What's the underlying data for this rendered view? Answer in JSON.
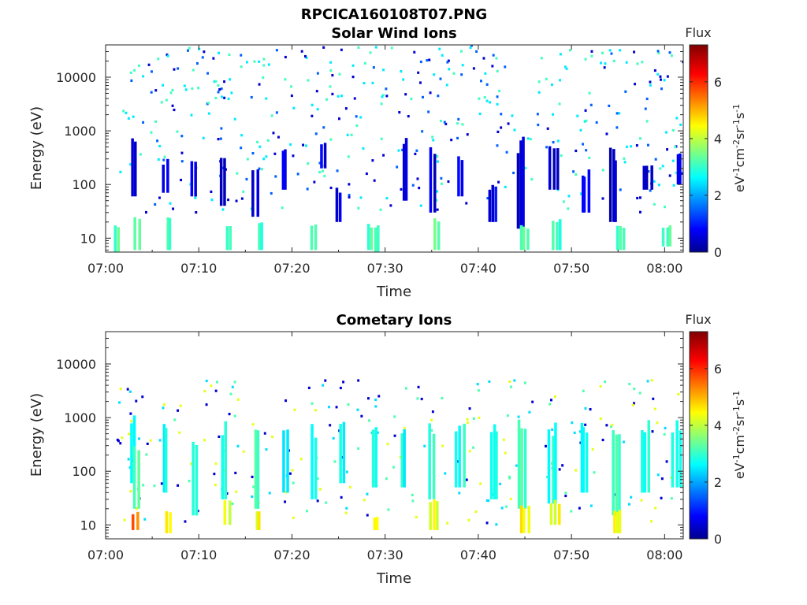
{
  "figure_title": "RPCICA160108T07.PNG",
  "colorbar": {
    "title": "Flux",
    "label_main": "eV",
    "label_sup1": "-1",
    "label_cm": "cm",
    "label_sup2": "-2",
    "label_sr": "sr",
    "label_sup3": "-1",
    "label_s": "s",
    "label_sup4": "-1",
    "range": [
      0,
      7.3
    ],
    "ticks": [
      "0",
      "2",
      "4",
      "6"
    ],
    "colormap": "jet"
  },
  "chart_data": [
    {
      "type": "heatmap",
      "title": "Solar Wind Ions",
      "xlabel": "Time",
      "ylabel": "Energy (eV)",
      "x_range_minutes_after_0700": [
        0,
        62
      ],
      "y_scale": "log",
      "y_range_eV": [
        5.5,
        40000
      ],
      "x_ticks": [
        "07:00",
        "07:10",
        "07:20",
        "07:30",
        "07:40",
        "07:50",
        "08:00"
      ],
      "y_ticks": [
        "10",
        "100",
        "1000",
        "10000"
      ],
      "color_quantity": "Flux",
      "streaks": [
        [
          1.2,
          5.5,
          18,
          3.3
        ],
        [
          3.1,
          60,
          900,
          0.7
        ],
        [
          3.4,
          6,
          30,
          3.4
        ],
        [
          6.5,
          70,
          300,
          0.6
        ],
        [
          6.8,
          6,
          25,
          3.2
        ],
        [
          9.4,
          60,
          300,
          0.6
        ],
        [
          12.6,
          40,
          400,
          0.7
        ],
        [
          13.3,
          6,
          20,
          3.3
        ],
        [
          16.1,
          25,
          300,
          0.6
        ],
        [
          16.6,
          6,
          20,
          3.2
        ],
        [
          19.2,
          80,
          500,
          0.8
        ],
        [
          22.3,
          6,
          20,
          3.1
        ],
        [
          23.4,
          200,
          700,
          0.7
        ],
        [
          25.1,
          20,
          90,
          0.8
        ],
        [
          28.3,
          6,
          20,
          3.2
        ],
        [
          29.1,
          5.5,
          18,
          3.3
        ],
        [
          32.2,
          50,
          900,
          0.6
        ],
        [
          35.1,
          30,
          500,
          0.7
        ],
        [
          35.6,
          6,
          25,
          3.4
        ],
        [
          38.2,
          60,
          400,
          0.7
        ],
        [
          41.5,
          20,
          100,
          0.8
        ],
        [
          44.6,
          15,
          800,
          0.6
        ],
        [
          45.0,
          6,
          18,
          3.3
        ],
        [
          48.1,
          80,
          600,
          0.6
        ],
        [
          48.5,
          6,
          25,
          3.2
        ],
        [
          51.5,
          30,
          200,
          0.7
        ],
        [
          54.5,
          20,
          500,
          0.6
        ],
        [
          55.3,
          6,
          18,
          3.3
        ],
        [
          58.2,
          80,
          250,
          0.7
        ],
        [
          60.3,
          7,
          18,
          3.2
        ],
        [
          61.7,
          100,
          500,
          0.7
        ]
      ],
      "scattered_pixels": {
        "count": 430,
        "x_range": [
          1,
          62
        ],
        "log_energy_range": [
          1.45,
          4.6
        ],
        "flux_levels": [
          0.6,
          1.6,
          2.6,
          3.2
        ]
      }
    },
    {
      "type": "heatmap",
      "title": "Cometary Ions",
      "xlabel": "Time",
      "ylabel": "Energy (eV)",
      "x_range_minutes_after_0700": [
        0,
        62
      ],
      "y_scale": "log",
      "y_range_eV": [
        5.5,
        40000
      ],
      "x_ticks": [
        "07:00",
        "07:10",
        "07:20",
        "07:30",
        "07:40",
        "07:50",
        "08:00"
      ],
      "y_ticks": [
        "10",
        "100",
        "1000",
        "10000"
      ],
      "color_quantity": "Flux",
      "streaks": [
        [
          3.0,
          60,
          1100,
          2.6
        ],
        [
          3.2,
          8,
          18,
          5.6
        ],
        [
          3.4,
          20,
          300,
          3.5
        ],
        [
          6.4,
          40,
          900,
          2.8
        ],
        [
          6.7,
          7,
          20,
          4.8
        ],
        [
          9.6,
          15,
          600,
          3.0
        ],
        [
          12.8,
          30,
          900,
          2.8
        ],
        [
          13.1,
          10,
          30,
          4.3
        ],
        [
          16.2,
          20,
          800,
          3.1
        ],
        [
          16.4,
          8,
          20,
          4.5
        ],
        [
          19.3,
          40,
          1000,
          2.7
        ],
        [
          22.4,
          30,
          800,
          2.8
        ],
        [
          25.5,
          60,
          900,
          2.9
        ],
        [
          28.8,
          50,
          800,
          2.9
        ],
        [
          29.0,
          8,
          15,
          4.4
        ],
        [
          32.0,
          50,
          900,
          2.8
        ],
        [
          35.0,
          30,
          900,
          3.2
        ],
        [
          35.3,
          8,
          30,
          4.4
        ],
        [
          38.1,
          50,
          800,
          2.9
        ],
        [
          41.7,
          30,
          1000,
          2.8
        ],
        [
          44.7,
          20,
          1000,
          3.1
        ],
        [
          45.0,
          7,
          25,
          4.6
        ],
        [
          48.0,
          25,
          900,
          3.0
        ],
        [
          48.3,
          10,
          30,
          4.5
        ],
        [
          51.4,
          40,
          800,
          2.8
        ],
        [
          54.8,
          15,
          700,
          3.2
        ],
        [
          55.0,
          7,
          20,
          4.6
        ],
        [
          58.0,
          40,
          900,
          2.8
        ],
        [
          61.3,
          50,
          900,
          2.7
        ]
      ],
      "scattered_pixels": {
        "count": 260,
        "x_range": [
          1,
          62
        ],
        "log_energy_range": [
          1.0,
          3.7
        ],
        "flux_levels": [
          0.6,
          2.5,
          3.3,
          4.4
        ]
      }
    }
  ]
}
